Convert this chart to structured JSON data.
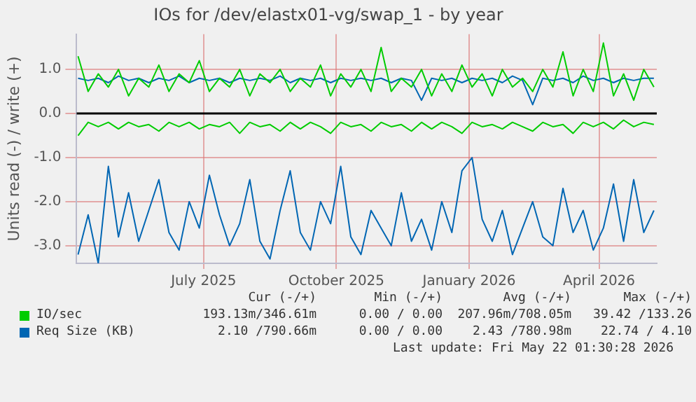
{
  "chart_data": {
    "type": "line",
    "title": "IOs for /dev/elastx01-vg/swap_1 - by year",
    "ylabel": "Units read (-) / write (+)",
    "x": [
      "2025-04-05",
      "2025-04-12",
      "2025-04-19",
      "2025-04-26",
      "2025-05-03",
      "2025-05-10",
      "2025-05-17",
      "2025-05-24",
      "2025-05-31",
      "2025-06-07",
      "2025-06-14",
      "2025-06-21",
      "2025-06-28",
      "2025-07-05",
      "2025-07-12",
      "2025-07-19",
      "2025-07-26",
      "2025-08-02",
      "2025-08-09",
      "2025-08-16",
      "2025-08-23",
      "2025-08-30",
      "2025-09-06",
      "2025-09-13",
      "2025-09-20",
      "2025-09-27",
      "2025-10-04",
      "2025-10-11",
      "2025-10-18",
      "2025-10-25",
      "2025-11-01",
      "2025-11-08",
      "2025-11-15",
      "2025-11-22",
      "2025-11-29",
      "2025-12-06",
      "2025-12-13",
      "2025-12-20",
      "2025-12-27",
      "2026-01-03",
      "2026-01-10",
      "2026-01-17",
      "2026-01-24",
      "2026-01-31",
      "2026-02-07",
      "2026-02-14",
      "2026-02-21",
      "2026-02-28",
      "2026-03-07",
      "2026-03-14",
      "2026-03-21",
      "2026-03-28",
      "2026-04-04",
      "2026-04-11",
      "2026-04-18",
      "2026-04-25",
      "2026-05-02",
      "2026-05-09"
    ],
    "series": [
      {
        "name": "IO/sec",
        "color": "#00cc00",
        "values": [
          1.3,
          0.5,
          0.9,
          0.6,
          1.0,
          0.4,
          0.8,
          0.6,
          1.1,
          0.5,
          0.9,
          0.7,
          1.2,
          0.5,
          0.8,
          0.6,
          1.0,
          0.4,
          0.9,
          0.7,
          1.0,
          0.5,
          0.8,
          0.6,
          1.1,
          0.4,
          0.9,
          0.6,
          1.0,
          0.5,
          1.5,
          0.5,
          0.8,
          0.6,
          1.0,
          0.4,
          0.9,
          0.5,
          1.1,
          0.6,
          0.9,
          0.4,
          1.0,
          0.6,
          0.8,
          0.5,
          1.0,
          0.6,
          1.4,
          0.4,
          1.0,
          0.5,
          1.6,
          0.4,
          0.9,
          0.3,
          1.0,
          0.6
        ]
      },
      {
        "color": "#00cc00",
        "values": [
          -0.5,
          -0.2,
          -0.3,
          -0.2,
          -0.35,
          -0.2,
          -0.3,
          -0.25,
          -0.4,
          -0.2,
          -0.3,
          -0.2,
          -0.35,
          -0.25,
          -0.3,
          -0.2,
          -0.45,
          -0.2,
          -0.3,
          -0.25,
          -0.4,
          -0.2,
          -0.35,
          -0.2,
          -0.3,
          -0.45,
          -0.2,
          -0.3,
          -0.25,
          -0.4,
          -0.2,
          -0.3,
          -0.25,
          -0.4,
          -0.2,
          -0.35,
          -0.2,
          -0.3,
          -0.45,
          -0.2,
          -0.3,
          -0.25,
          -0.35,
          -0.2,
          -0.3,
          -0.4,
          -0.2,
          -0.3,
          -0.25,
          -0.45,
          -0.2,
          -0.3,
          -0.2,
          -0.35,
          -0.15,
          -0.3,
          -0.2,
          -0.25
        ]
      },
      {
        "name": "Req Size (KB)",
        "color": "#0066b3",
        "values": [
          0.8,
          0.75,
          0.8,
          0.7,
          0.85,
          0.75,
          0.8,
          0.7,
          0.8,
          0.75,
          0.85,
          0.7,
          0.8,
          0.75,
          0.8,
          0.7,
          0.8,
          0.75,
          0.8,
          0.75,
          0.85,
          0.7,
          0.8,
          0.75,
          0.8,
          0.7,
          0.8,
          0.75,
          0.8,
          0.75,
          0.8,
          0.7,
          0.8,
          0.75,
          0.3,
          0.8,
          0.75,
          0.8,
          0.7,
          0.8,
          0.75,
          0.8,
          0.7,
          0.85,
          0.75,
          0.2,
          0.8,
          0.75,
          0.8,
          0.7,
          0.85,
          0.75,
          0.8,
          0.7,
          0.8,
          0.75,
          0.8,
          0.8
        ]
      },
      {
        "color": "#0066b3",
        "values": [
          -3.2,
          -2.3,
          -3.4,
          -1.2,
          -2.8,
          -1.8,
          -2.9,
          -2.2,
          -1.5,
          -2.7,
          -3.1,
          -2.0,
          -2.6,
          -1.4,
          -2.3,
          -3.0,
          -2.5,
          -1.5,
          -2.9,
          -3.3,
          -2.2,
          -1.3,
          -2.7,
          -3.1,
          -2.0,
          -2.5,
          -1.2,
          -2.8,
          -3.2,
          -2.2,
          -2.6,
          -3.0,
          -1.8,
          -2.9,
          -2.4,
          -3.1,
          -2.0,
          -2.7,
          -1.3,
          -1.0,
          -2.4,
          -2.9,
          -2.2,
          -3.2,
          -2.6,
          -2.0,
          -2.8,
          -3.0,
          -1.7,
          -2.7,
          -2.2,
          -3.1,
          -2.6,
          -1.6,
          -2.9,
          -1.5,
          -2.7,
          -2.2
        ]
      }
    ],
    "xlim": [
      "2025-04-04",
      "2026-05-11"
    ],
    "xticks": [
      {
        "value": "2025-07-01",
        "label": "July 2025"
      },
      {
        "value": "2025-10-01",
        "label": "October 2025"
      },
      {
        "value": "2026-01-01",
        "label": "January 2026"
      },
      {
        "value": "2026-04-01",
        "label": "April 2026"
      }
    ],
    "ylim": [
      -3.4,
      1.8
    ],
    "yticks": [
      {
        "value": -3,
        "label": "-3.0"
      },
      {
        "value": -2,
        "label": "-2.0"
      },
      {
        "value": -1,
        "label": "-1.0"
      },
      {
        "value": 0,
        "label": "0.0"
      },
      {
        "value": 1,
        "label": "1.0"
      }
    ],
    "ref_lines": [
      {
        "axis": "y",
        "value": 0,
        "color": "#000000"
      }
    ],
    "grid": true,
    "legend": "bottom",
    "marker": "none",
    "line_style": "solid",
    "annotations": [
      "Cur (-/+)",
      "Min (-/+)",
      "Avg (-/+)",
      "Max (-/+)",
      "193.13m/346.61m",
      "0.00 / 0.00",
      "207.96m/708.05m",
      "39.42 /133.26",
      "2.10 /790.66m",
      "0.00 / 0.00",
      "2.43 /780.98m",
      "22.74 / 4.10",
      "Last update: Fri May 22 01:30:28 2026"
    ]
  }
}
